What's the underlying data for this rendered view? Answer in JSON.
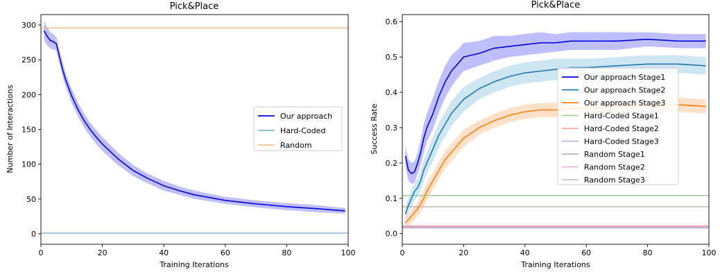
{
  "chart_data": [
    {
      "type": "line",
      "title": "Pick&Place",
      "xlabel": "Training Iterations",
      "ylabel": "Number of Interactions",
      "xlim": [
        0,
        100
      ],
      "ylim": [
        -15,
        315
      ],
      "xticks": [
        0,
        20,
        40,
        60,
        80,
        100
      ],
      "yticks": [
        0,
        50,
        100,
        150,
        200,
        250,
        300
      ],
      "legend_loc": "center-right",
      "series": [
        {
          "name": "Our approach",
          "color": "#0000dd",
          "band_color": "#8a8aff",
          "x": [
            1,
            2,
            3,
            4,
            5,
            6,
            7,
            8,
            10,
            12,
            14,
            16,
            18,
            20,
            25,
            30,
            35,
            40,
            45,
            50,
            60,
            70,
            80,
            90,
            99
          ],
          "y": [
            292,
            284,
            278,
            276,
            273,
            255,
            237,
            222,
            198,
            179,
            163,
            150,
            139,
            129,
            108,
            91,
            79,
            69,
            62,
            56,
            48,
            43,
            39,
            36,
            33
          ],
          "spread": [
            14,
            13,
            12,
            11,
            10,
            10,
            10,
            10,
            10,
            10,
            10,
            10,
            10,
            10,
            9,
            8,
            7,
            7,
            6,
            6,
            5,
            5,
            5,
            5,
            4
          ]
        },
        {
          "name": "Hard-Coded",
          "color": "#6fa8dc",
          "x": [
            0,
            100
          ],
          "y": [
            1,
            1
          ]
        },
        {
          "name": "Random",
          "color": "#f5b27c",
          "x": [
            0,
            100
          ],
          "y": [
            296,
            296
          ]
        }
      ]
    },
    {
      "type": "line",
      "title": "Pick&Place",
      "xlabel": "Training Iterations",
      "ylabel": "Success Rate",
      "xlim": [
        0,
        100
      ],
      "ylim": [
        -0.03,
        0.62
      ],
      "xticks": [
        0,
        20,
        40,
        60,
        80,
        100
      ],
      "yticks": [
        "0.0",
        "0.1",
        "0.2",
        "0.3",
        "0.4",
        "0.5",
        "0.6"
      ],
      "legend_loc": "center-right",
      "series": [
        {
          "name": "Our approach Stage1",
          "color": "#0000dd",
          "band_color": "#8a8aff",
          "x": [
            1,
            2,
            3,
            4,
            5,
            6,
            7,
            8,
            10,
            12,
            14,
            16,
            18,
            20,
            25,
            30,
            35,
            40,
            45,
            50,
            55,
            60,
            70,
            80,
            90,
            99
          ],
          "y": [
            0.22,
            0.18,
            0.17,
            0.175,
            0.2,
            0.23,
            0.27,
            0.3,
            0.34,
            0.39,
            0.43,
            0.46,
            0.48,
            0.5,
            0.51,
            0.525,
            0.53,
            0.535,
            0.54,
            0.54,
            0.545,
            0.545,
            0.545,
            0.55,
            0.545,
            0.545
          ],
          "spread": [
            0.03,
            0.03,
            0.03,
            0.03,
            0.03,
            0.035,
            0.04,
            0.04,
            0.045,
            0.045,
            0.045,
            0.045,
            0.04,
            0.04,
            0.035,
            0.035,
            0.03,
            0.03,
            0.03,
            0.025,
            0.025,
            0.025,
            0.025,
            0.02,
            0.02,
            0.02
          ]
        },
        {
          "name": "Our approach Stage2",
          "color": "#1f77b4",
          "band_color": "#a6cfe8",
          "x": [
            1,
            2,
            3,
            4,
            5,
            6,
            7,
            8,
            10,
            12,
            14,
            16,
            18,
            20,
            25,
            30,
            35,
            40,
            45,
            50,
            55,
            60,
            70,
            80,
            90,
            99
          ],
          "y": [
            0.055,
            0.08,
            0.1,
            0.12,
            0.13,
            0.15,
            0.18,
            0.2,
            0.24,
            0.28,
            0.31,
            0.34,
            0.36,
            0.38,
            0.41,
            0.43,
            0.445,
            0.455,
            0.46,
            0.465,
            0.47,
            0.47,
            0.475,
            0.48,
            0.48,
            0.475
          ],
          "spread": [
            0.02,
            0.02,
            0.025,
            0.025,
            0.025,
            0.03,
            0.03,
            0.03,
            0.035,
            0.035,
            0.035,
            0.035,
            0.035,
            0.035,
            0.03,
            0.03,
            0.03,
            0.03,
            0.03,
            0.03,
            0.025,
            0.025,
            0.025,
            0.025,
            0.025,
            0.025
          ]
        },
        {
          "name": "Our approach Stage3",
          "color": "#ff7f0e",
          "band_color": "#ffc99c",
          "x": [
            1,
            2,
            3,
            4,
            5,
            6,
            7,
            8,
            10,
            12,
            14,
            16,
            18,
            20,
            25,
            30,
            35,
            40,
            45,
            50,
            55,
            60,
            70,
            80,
            90,
            99
          ],
          "y": [
            0.03,
            0.04,
            0.05,
            0.06,
            0.07,
            0.085,
            0.1,
            0.12,
            0.15,
            0.18,
            0.21,
            0.23,
            0.25,
            0.27,
            0.3,
            0.32,
            0.335,
            0.345,
            0.35,
            0.35,
            0.355,
            0.355,
            0.36,
            0.36,
            0.365,
            0.36
          ],
          "spread": [
            0.015,
            0.015,
            0.02,
            0.02,
            0.02,
            0.025,
            0.025,
            0.025,
            0.025,
            0.025,
            0.025,
            0.025,
            0.025,
            0.025,
            0.02,
            0.02,
            0.02,
            0.02,
            0.02,
            0.02,
            0.02,
            0.02,
            0.02,
            0.02,
            0.02,
            0.02
          ]
        },
        {
          "name": "Hard-Coded Stage1",
          "color": "#8fd18f",
          "x": [
            0,
            100
          ],
          "y": [
            0.108,
            0.108
          ]
        },
        {
          "name": "Hard-Coded Stage2",
          "color": "#f0a08a",
          "x": [
            0,
            100
          ],
          "y": [
            0.022,
            0.022
          ]
        },
        {
          "name": "Hard-Coded Stage3",
          "color": "#c6a6e3",
          "x": [
            0,
            100
          ],
          "y": [
            0.018,
            0.018
          ]
        },
        {
          "name": "Random Stage1",
          "color": "#c4a49a",
          "x": [
            0,
            100
          ],
          "y": [
            0.076,
            0.076
          ]
        },
        {
          "name": "Random Stage2",
          "color": "#efa8d6",
          "x": [
            0,
            100
          ],
          "y": [
            0.02,
            0.02
          ]
        },
        {
          "name": "Random Stage3",
          "color": "#bdbdbd",
          "x": [
            0,
            100
          ],
          "y": [
            0.016,
            0.016
          ]
        }
      ]
    }
  ]
}
